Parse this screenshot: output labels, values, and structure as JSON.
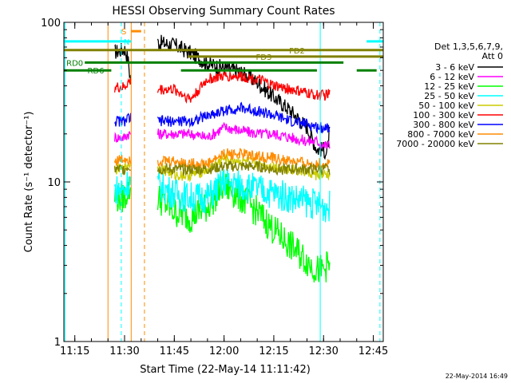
{
  "chart_data": {
    "type": "line",
    "title": "HESSI Observing Summary Count Rates",
    "xlabel": "Start Time (22-May-14 11:11:42)",
    "ylabel": "Count Rate (s⁻¹ detector⁻¹)",
    "x_unit": "UT time (hh:mm)",
    "xlim": [
      "11:11:42",
      "12:48:00"
    ],
    "ylim": [
      1,
      100
    ],
    "y_scale": "log",
    "x_ticks": [
      "11:15",
      "11:30",
      "11:45",
      "12:00",
      "12:15",
      "12:30",
      "12:45"
    ],
    "y_ticks": [
      {
        "value": 1,
        "label": "1"
      },
      {
        "value": 10,
        "label": "10"
      },
      {
        "value": 100,
        "label": "100"
      }
    ],
    "legend_placement": "right",
    "legend_header": [
      "Det 1,3,5,6,7,9,",
      "Att 0"
    ],
    "series": [
      {
        "name": "3 - 6 keV",
        "color": "#000000",
        "x": [
          "11:27",
          "11:30",
          "11:31",
          "11:32",
          "11:40",
          "11:45",
          "11:50",
          "11:55",
          "12:00",
          "12:05",
          "12:10",
          "12:15",
          "12:20",
          "12:25",
          "12:28",
          "12:30",
          "12:31",
          "12:32"
        ],
        "values": [
          65,
          68,
          60,
          40,
          75,
          72,
          64,
          55,
          52,
          49,
          42,
          34,
          28,
          22,
          16,
          16,
          15,
          22
        ]
      },
      {
        "name": "6 - 12 keV",
        "color": "#ff00ff",
        "x": [
          "11:27",
          "11:30",
          "11:31",
          "11:32",
          "11:40",
          "11:45",
          "11:50",
          "11:55",
          "12:00",
          "12:05",
          "12:10",
          "12:15",
          "12:20",
          "12:25",
          "12:28",
          "12:30",
          "12:31",
          "12:32"
        ],
        "values": [
          19,
          19,
          20,
          20,
          20,
          20,
          20,
          19,
          22,
          21,
          20,
          20,
          19,
          18,
          18,
          17,
          17,
          17
        ]
      },
      {
        "name": "12 - 25 keV",
        "color": "#00ff00",
        "x": [
          "11:27",
          "11:30",
          "11:31",
          "11:32",
          "11:40",
          "11:45",
          "11:50",
          "11:55",
          "12:00",
          "12:05",
          "12:10",
          "12:15",
          "12:20",
          "12:25",
          "12:28",
          "12:30",
          "12:31",
          "12:32"
        ],
        "values": [
          8,
          8,
          9,
          9,
          8,
          6.5,
          6,
          7,
          9.5,
          8,
          6.5,
          5,
          4,
          3.2,
          2.8,
          2.8,
          3,
          3
        ]
      },
      {
        "name": "25 - 50 keV",
        "color": "#00ffff",
        "x": [
          "11:27",
          "11:30",
          "11:31",
          "11:32",
          "11:40",
          "11:45",
          "11:50",
          "11:55",
          "12:00",
          "12:05",
          "12:10",
          "12:15",
          "12:20",
          "12:25",
          "12:28",
          "12:30",
          "12:31",
          "12:32"
        ],
        "values": [
          9,
          9,
          10,
          10,
          9.5,
          8.5,
          8,
          8,
          10,
          9.5,
          9,
          8.5,
          8,
          7.5,
          7.2,
          7,
          7,
          7
        ]
      },
      {
        "name": "50 - 100 keV",
        "color": "#cccc00",
        "x": [
          "11:27",
          "11:30",
          "11:31",
          "11:32",
          "11:40",
          "11:45",
          "11:50",
          "11:55",
          "12:00",
          "12:05",
          "12:10",
          "12:15",
          "12:20",
          "12:25",
          "12:28",
          "12:30",
          "12:31",
          "12:32"
        ],
        "values": [
          12,
          12,
          13,
          13,
          12.5,
          11,
          11,
          12,
          14,
          13.5,
          13,
          12.5,
          12,
          11.5,
          11,
          11,
          11,
          11
        ]
      },
      {
        "name": "100 - 300 keV",
        "color": "#ff0000",
        "x": [
          "11:27",
          "11:30",
          "11:31",
          "11:32",
          "11:40",
          "11:45",
          "11:50",
          "11:55",
          "12:00",
          "12:05",
          "12:10",
          "12:15",
          "12:20",
          "12:25",
          "12:28",
          "12:30",
          "12:31",
          "12:32"
        ],
        "values": [
          39,
          39,
          42,
          42,
          38,
          38,
          33,
          44,
          46,
          46,
          44,
          40,
          38,
          36,
          35,
          35,
          35,
          36
        ]
      },
      {
        "name": "300 - 800 keV",
        "color": "#0000ff",
        "x": [
          "11:27",
          "11:30",
          "11:31",
          "11:32",
          "11:40",
          "11:45",
          "11:50",
          "11:55",
          "12:00",
          "12:05",
          "12:10",
          "12:15",
          "12:20",
          "12:25",
          "12:28",
          "12:30",
          "12:31",
          "12:32"
        ],
        "values": [
          24,
          24,
          25,
          25,
          24,
          24,
          24,
          26,
          28,
          29,
          28,
          26,
          24,
          23,
          22,
          22,
          22,
          22
        ]
      },
      {
        "name": "800 - 7000 keV",
        "color": "#ff8c00",
        "x": [
          "11:27",
          "11:30",
          "11:31",
          "11:32",
          "11:40",
          "11:45",
          "11:50",
          "11:55",
          "12:00",
          "12:05",
          "12:10",
          "12:15",
          "12:20",
          "12:25",
          "12:28",
          "12:30",
          "12:31",
          "12:32"
        ],
        "values": [
          13.5,
          14,
          14,
          14,
          13.5,
          13.5,
          13,
          13,
          15,
          15,
          14.5,
          14,
          13.5,
          13,
          13,
          13,
          13,
          13
        ]
      },
      {
        "name": "7000 - 20000 keV",
        "color": "#808000",
        "x": [
          "11:27",
          "11:30",
          "11:31",
          "11:32",
          "11:40",
          "11:45",
          "11:50",
          "11:55",
          "12:00",
          "12:05",
          "12:10",
          "12:15",
          "12:20",
          "12:25",
          "12:28",
          "12:30",
          "12:31",
          "12:32"
        ],
        "values": [
          12,
          12,
          12.5,
          12.5,
          12,
          12,
          12,
          12,
          12.5,
          12.5,
          12.5,
          12,
          12,
          12,
          12,
          12,
          12,
          12
        ]
      }
    ],
    "flag_bars": [
      {
        "label": "S",
        "color": "#ff8c00",
        "x_start": "11:32",
        "x_end": "11:35",
        "value": 88
      },
      {
        "label": "N",
        "color": "#00ffff",
        "x_start": "11:11:42",
        "x_end": "11:32",
        "value": 76
      },
      {
        "label": "",
        "color": "#00ffff",
        "x_start": "12:43",
        "x_end": "12:48",
        "value": 76
      },
      {
        "label": "FD2",
        "color": "#808000",
        "x_start": "11:11:42",
        "x_end": "12:48",
        "value": 67
      },
      {
        "label": "FD3",
        "color": "#808000",
        "x_start": "11:49",
        "x_end": "12:48",
        "value": 61
      },
      {
        "label": "RD0",
        "color": "#008000",
        "x_start": "11:18",
        "x_end": "12:36",
        "value": 56
      },
      {
        "label": "RD6",
        "color": "#008000",
        "x_start": "11:11:42",
        "x_end": "11:26",
        "value": 50
      },
      {
        "label": "",
        "color": "#008000",
        "x_start": "11:47",
        "x_end": "12:28",
        "value": 50
      },
      {
        "label": "",
        "color": "#008000",
        "x_start": "12:40",
        "x_end": "12:46",
        "value": 50
      }
    ],
    "vertical_lines": [
      {
        "x": "11:12",
        "color": "#00ffff",
        "style": "solid"
      },
      {
        "x": "11:29",
        "color": "#00ffff",
        "style": "dashed"
      },
      {
        "x": "11:32",
        "color": "#ff8c00",
        "style": "solid"
      },
      {
        "x": "11:36",
        "color": "#ff8c00",
        "style": "dashed"
      },
      {
        "x": "12:29",
        "color": "#00ffff",
        "style": "solid"
      },
      {
        "x": "12:47",
        "color": "#00ffff",
        "style": "dashed"
      },
      {
        "x": "11:25",
        "color": "#ff8c00",
        "style": "solid"
      }
    ],
    "footer_date": "22-May-2014 16:49"
  }
}
